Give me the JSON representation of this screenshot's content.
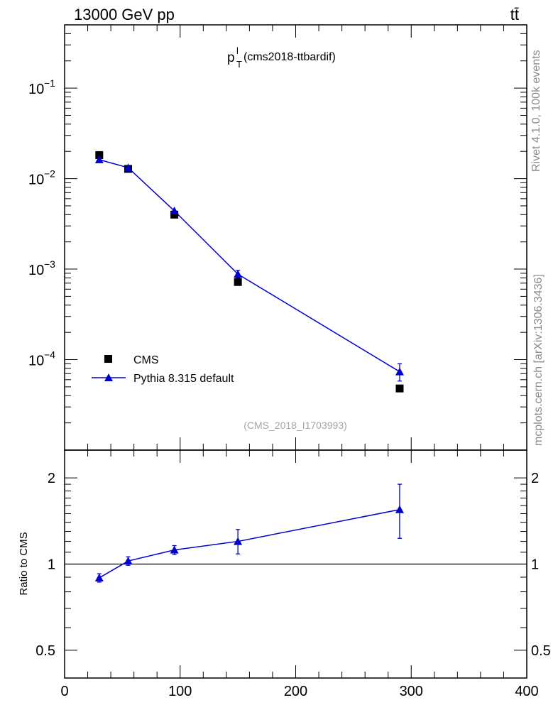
{
  "header": {
    "energy_label": "13000 GeV pp",
    "process_label": "tt̄"
  },
  "side_labels": {
    "rivet": "Rivet 4.1.0,  100k events",
    "mcplots": "mcplots.cern.ch [arXiv:1306.3436]"
  },
  "chart_data": [
    {
      "type": "scatter",
      "title_main": "p",
      "title_sup": "l",
      "title_sub": "T",
      "title_rest": " (cms2018-ttbardif)",
      "watermark": "(CMS_2018_I1703993)",
      "yscale": "log",
      "xlim": [
        0,
        400
      ],
      "ylim": [
        1e-05,
        0.5
      ],
      "ytick_labels": [
        {
          "value": 0.1,
          "base": "10",
          "exp": "−1"
        },
        {
          "value": 0.01,
          "base": "10",
          "exp": "−2"
        },
        {
          "value": 0.001,
          "base": "10",
          "exp": "−3"
        },
        {
          "value": 0.0001,
          "base": "10",
          "exp": "−4"
        }
      ],
      "legend_position": "bottom-left",
      "series": [
        {
          "name": "CMS",
          "marker": "square",
          "color": "#000000",
          "x": [
            30,
            55,
            95,
            150,
            290
          ],
          "y": [
            0.0182,
            0.0128,
            0.004,
            0.00072,
            4.8e-05
          ]
        },
        {
          "name": "Pythia 8.315 default",
          "marker": "triangle",
          "color": "#0000cc",
          "line": true,
          "x": [
            30,
            55,
            95,
            150,
            290
          ],
          "y": [
            0.0162,
            0.0132,
            0.0044,
            0.00088,
            7.35e-05
          ],
          "yerr_low": [
            0.0162,
            0.0132,
            0.0044,
            0.0008,
            5.8e-05
          ],
          "yerr_high": [
            0.0162,
            0.0132,
            0.0044,
            0.00097,
            9e-05
          ]
        }
      ]
    },
    {
      "type": "scatter",
      "ylabel": "Ratio to CMS",
      "yscale": "log",
      "xlim": [
        0,
        400
      ],
      "ylim": [
        0.4,
        2.5
      ],
      "xticks": [
        "0",
        "100",
        "200",
        "300",
        "400"
      ],
      "yticks": [
        "0.5",
        "1",
        "2"
      ],
      "reference_line": 1,
      "series": [
        {
          "name": "Pythia 8.315 default",
          "marker": "triangle",
          "color": "#0000cc",
          "x": [
            30,
            55,
            95,
            150,
            290
          ],
          "y": [
            0.895,
            1.025,
            1.12,
            1.2,
            1.55
          ],
          "yerr_low": [
            0.865,
            0.99,
            1.08,
            1.085,
            1.23
          ],
          "yerr_high": [
            0.925,
            1.06,
            1.16,
            1.32,
            1.9
          ]
        }
      ]
    }
  ]
}
